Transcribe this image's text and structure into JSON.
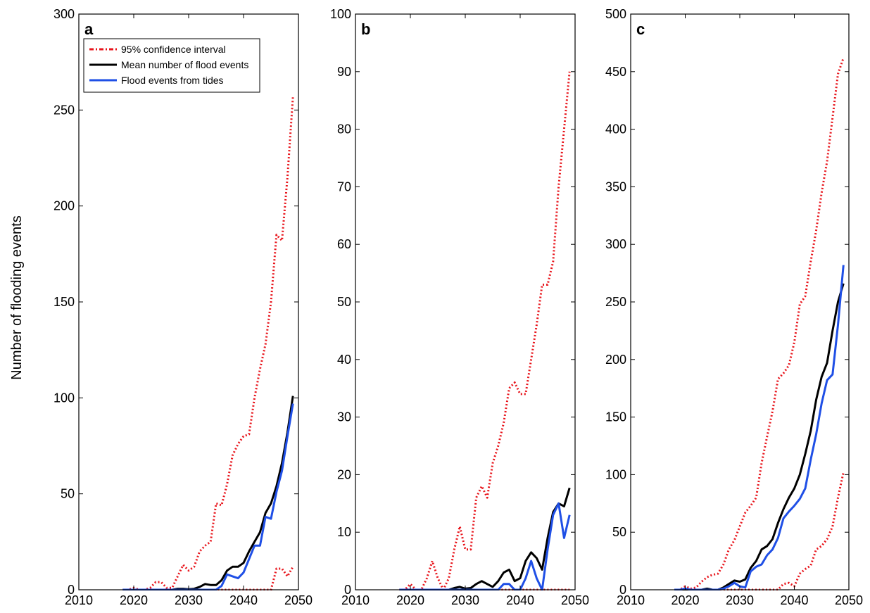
{
  "ylabel": "Number of flooding events",
  "legend": {
    "placement": "top-left",
    "entries": [
      {
        "name": "95% confidence interval",
        "color": "#e8141b",
        "style": "dotted"
      },
      {
        "name": "Mean number of flood events",
        "color": "#000000",
        "style": "solid"
      },
      {
        "name": "Flood events from tides",
        "color": "#1f4fe6",
        "style": "solid"
      }
    ]
  },
  "chart_data": [
    {
      "type": "line",
      "panel_label": "a",
      "xlim": [
        2010,
        2050
      ],
      "ylim": [
        0,
        300
      ],
      "x_ticks": [
        2010,
        2020,
        2030,
        2040,
        2050
      ],
      "y_ticks": [
        0,
        50,
        100,
        150,
        200,
        250,
        300
      ],
      "x": [
        2018,
        2019,
        2020,
        2021,
        2022,
        2023,
        2024,
        2025,
        2026,
        2027,
        2028,
        2029,
        2030,
        2031,
        2032,
        2033,
        2034,
        2035,
        2036,
        2037,
        2038,
        2039,
        2040,
        2041,
        2042,
        2043,
        2044,
        2045,
        2046,
        2047,
        2048,
        2049
      ],
      "series": [
        {
          "name": "95% confidence interval",
          "legend_index": 0,
          "values": [
            0,
            0,
            1,
            0,
            0,
            1,
            4,
            4,
            1,
            1,
            7,
            13,
            10,
            12,
            20,
            23,
            25,
            45,
            44,
            55,
            70,
            76,
            80,
            81,
            100,
            115,
            128,
            150,
            185,
            182,
            215,
            257
          ]
        },
        {
          "name": "95% confidence interval",
          "legend_index": 0,
          "values": [
            0,
            0,
            0,
            0,
            0,
            0,
            0,
            0,
            0,
            0,
            0,
            0,
            0,
            0,
            0,
            0,
            0,
            0,
            0,
            0,
            0,
            0,
            0,
            0,
            0,
            0,
            0,
            0,
            11,
            11,
            7,
            12
          ]
        },
        {
          "name": "Mean number of flood events",
          "legend_index": 1,
          "values": [
            0,
            0,
            0,
            0,
            0,
            0,
            0,
            0,
            0,
            0,
            0.5,
            0.5,
            0.3,
            0.5,
            1.5,
            3,
            2.5,
            2.5,
            5,
            10,
            12,
            12,
            14,
            20,
            25,
            30,
            40,
            45,
            54,
            66,
            82,
            101
          ]
        },
        {
          "name": "Flood events from tides",
          "legend_index": 2,
          "values": [
            0,
            0,
            0,
            0,
            0,
            0,
            0,
            0,
            0,
            0,
            0,
            0,
            0,
            0,
            0,
            0,
            0,
            0,
            2,
            8,
            7,
            6,
            9,
            16,
            23,
            23,
            38,
            37,
            51,
            62,
            80,
            97
          ]
        }
      ]
    },
    {
      "type": "line",
      "panel_label": "b",
      "xlim": [
        2010,
        2050
      ],
      "ylim": [
        0,
        100
      ],
      "x_ticks": [
        2010,
        2020,
        2030,
        2040,
        2050
      ],
      "y_ticks": [
        0,
        10,
        20,
        30,
        40,
        50,
        60,
        70,
        80,
        90,
        100
      ],
      "x": [
        2018,
        2019,
        2020,
        2021,
        2022,
        2023,
        2024,
        2025,
        2026,
        2027,
        2028,
        2029,
        2030,
        2031,
        2032,
        2033,
        2034,
        2035,
        2036,
        2037,
        2038,
        2039,
        2040,
        2041,
        2042,
        2043,
        2044,
        2045,
        2046,
        2047,
        2048,
        2049
      ],
      "series": [
        {
          "name": "95% confidence interval",
          "legend_index": 0,
          "values": [
            0,
            0,
            1,
            0,
            0,
            2,
            5,
            2,
            0,
            2,
            7,
            11,
            7,
            7,
            16,
            18,
            16,
            22,
            25,
            29,
            35,
            36,
            34,
            34,
            40,
            46,
            53,
            53,
            57,
            70,
            80,
            90
          ]
        },
        {
          "name": "95% confidence interval",
          "legend_index": 0,
          "values": [
            0,
            0,
            0,
            0,
            0,
            0,
            0,
            0,
            0,
            0,
            0,
            0,
            0,
            0,
            0,
            0,
            0,
            0,
            0,
            0,
            0,
            0,
            0,
            0,
            0,
            0,
            0,
            0,
            0,
            0,
            0,
            0
          ]
        },
        {
          "name": "Mean number of flood events",
          "legend_index": 1,
          "values": [
            0,
            0,
            0,
            0,
            0,
            0,
            0,
            0,
            0,
            0,
            0.3,
            0.5,
            0.2,
            0.3,
            1,
            1.5,
            1,
            0.5,
            1.5,
            3,
            3.5,
            1.5,
            2,
            5,
            6.5,
            5.5,
            3.5,
            9,
            13.5,
            15,
            14.5,
            17.7
          ]
        },
        {
          "name": "Flood events from tides",
          "legend_index": 2,
          "values": [
            0,
            0,
            0,
            0,
            0,
            0,
            0,
            0,
            0,
            0,
            0,
            0,
            0,
            0,
            0,
            0,
            0,
            0,
            0,
            1,
            1,
            0,
            0,
            2,
            5,
            2,
            0,
            7,
            13,
            15,
            9,
            13
          ]
        }
      ]
    },
    {
      "type": "line",
      "panel_label": "c",
      "xlim": [
        2010,
        2050
      ],
      "ylim": [
        0,
        500
      ],
      "x_ticks": [
        2010,
        2020,
        2030,
        2040,
        2050
      ],
      "y_ticks": [
        0,
        50,
        100,
        150,
        200,
        250,
        300,
        350,
        400,
        450,
        500
      ],
      "x": [
        2018,
        2019,
        2020,
        2021,
        2022,
        2023,
        2024,
        2025,
        2026,
        2027,
        2028,
        2029,
        2030,
        2031,
        2032,
        2033,
        2034,
        2035,
        2036,
        2037,
        2038,
        2039,
        2040,
        2041,
        2042,
        2043,
        2044,
        2045,
        2046,
        2047,
        2048,
        2049
      ],
      "series": [
        {
          "name": "95% confidence interval",
          "legend_index": 0,
          "values": [
            0,
            0,
            3,
            1,
            2,
            7,
            11,
            13,
            14,
            22,
            35,
            43,
            55,
            67,
            73,
            80,
            110,
            133,
            155,
            183,
            188,
            195,
            215,
            248,
            255,
            285,
            312,
            345,
            372,
            410,
            448,
            462
          ]
        },
        {
          "name": "95% confidence interval",
          "legend_index": 0,
          "values": [
            0,
            0,
            0,
            0,
            0,
            0,
            0,
            0,
            0,
            0,
            0,
            0,
            0,
            0,
            0,
            0,
            0,
            0,
            0,
            0,
            5,
            6,
            3,
            14,
            18,
            21,
            35,
            38,
            44,
            55,
            80,
            102
          ]
        },
        {
          "name": "Mean number of flood events",
          "legend_index": 1,
          "values": [
            0,
            0,
            0,
            0,
            0,
            0,
            1,
            0,
            0,
            2,
            5,
            8,
            7,
            9,
            19,
            25,
            35,
            38,
            44,
            58,
            70,
            80,
            88,
            100,
            118,
            138,
            165,
            185,
            197,
            225,
            250,
            266
          ]
        },
        {
          "name": "Flood events from tides",
          "legend_index": 2,
          "values": [
            0,
            0,
            1,
            0,
            0,
            0,
            0,
            0,
            0,
            1,
            3,
            6,
            3,
            2,
            16,
            20,
            22,
            30,
            35,
            45,
            62,
            68,
            73,
            79,
            88,
            113,
            135,
            162,
            182,
            187,
            230,
            282
          ]
        }
      ]
    }
  ]
}
